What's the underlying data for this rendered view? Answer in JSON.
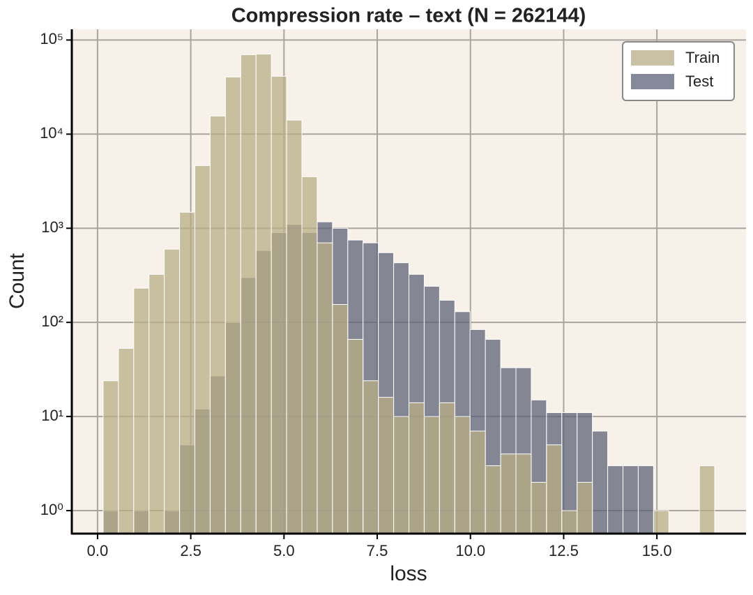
{
  "chart_data": {
    "type": "histogram",
    "title": "Compression rate – text (N = 262144)",
    "x_label": "loss",
    "y_label": "Count",
    "bins": [
      0.15,
      0.56,
      0.97,
      1.38,
      1.79,
      2.2,
      2.61,
      3.02,
      3.43,
      3.84,
      4.25,
      4.66,
      5.07,
      5.48,
      5.89,
      6.3,
      6.71,
      7.12,
      7.53,
      7.94,
      8.35,
      8.76,
      9.17,
      9.58,
      9.99,
      10.4,
      10.81,
      11.22,
      11.63,
      12.04,
      12.45,
      12.86,
      13.27,
      13.68,
      14.09,
      14.5,
      14.91,
      15.32,
      15.73,
      16.14,
      16.55
    ],
    "series": [
      {
        "name": "Train",
        "color": "#b8ad86",
        "values": [
          24,
          53,
          231,
          324,
          600,
          1480,
          4640,
          15600,
          40500,
          69900,
          71000,
          41200,
          14100,
          3530,
          700,
          155,
          66,
          24,
          16,
          10,
          14,
          10,
          14,
          10,
          7,
          3,
          4,
          4,
          2,
          5,
          1,
          2,
          0,
          0,
          0,
          0,
          1,
          0,
          0,
          3
        ]
      },
      {
        "name": "Test",
        "color": "#5d6277",
        "values": [
          1,
          0,
          1,
          0,
          1,
          5,
          12,
          27,
          100,
          300,
          580,
          900,
          1100,
          900,
          1170,
          1000,
          750,
          700,
          550,
          430,
          324,
          242,
          172,
          130,
          84,
          66,
          33,
          33,
          15,
          11,
          11,
          11,
          7,
          3,
          3,
          3,
          0,
          0,
          0,
          0
        ]
      }
    ],
    "xlim": [
      -0.69,
      17.39
    ],
    "ylim": [
      0.57,
      130000
    ],
    "yscale": "log",
    "xticks": [
      {
        "value": 0,
        "label": "0.0"
      },
      2.5,
      {
        "value": 5,
        "label": "5.0"
      },
      7.5,
      {
        "value": 10,
        "label": "10.0"
      },
      12.5,
      {
        "value": 15,
        "label": "15.0"
      }
    ],
    "yticks": [
      {
        "value": 1,
        "label": "10⁰"
      },
      {
        "value": 10,
        "label": "10¹"
      },
      {
        "value": 100,
        "label": "10²"
      },
      {
        "value": 1000,
        "label": "10³"
      },
      {
        "value": 10000,
        "label": "10⁴"
      },
      {
        "value": 100000,
        "label": "10⁵"
      }
    ],
    "grid": true,
    "legend": "upper right"
  }
}
